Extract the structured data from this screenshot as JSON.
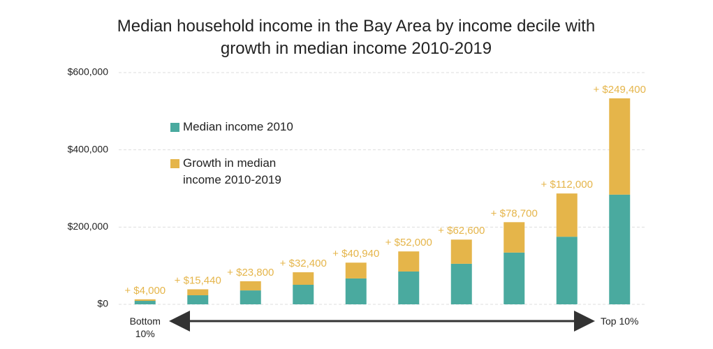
{
  "chart_data": {
    "type": "stacked_bar",
    "title": "Median household income in the Bay Area by income decile with growth in median income 2010-2019",
    "categories": [
      "Bottom 10%",
      null,
      null,
      null,
      null,
      null,
      null,
      null,
      null,
      "Top 10%"
    ],
    "series": [
      {
        "name": "Median income 2010",
        "color": "#4aaa9f",
        "values": [
          9000,
          23500,
          36000,
          50600,
          67000,
          85000,
          105000,
          134000,
          175000,
          284000
        ]
      },
      {
        "name": "Growth in median income 2010-2019",
        "color": "#e5b54a",
        "values": [
          4000,
          15440,
          23800,
          32400,
          40940,
          52000,
          62600,
          78700,
          112000,
          249400
        ],
        "value_labels": [
          "+ $4,000",
          "+ $15,440",
          "+ $23,800",
          "+ $32,400",
          "+ $40,940",
          "+ $52,000",
          "+ $62,600",
          "+ $78,700",
          "+ $112,000",
          "+ $249,400"
        ]
      }
    ],
    "ylim": [
      0,
      600000
    ],
    "yticks": [
      {
        "value": 0,
        "label": "$0"
      },
      {
        "value": 200000,
        "label": "$200,000"
      },
      {
        "value": 400000,
        "label": "$400,000"
      },
      {
        "value": 600000,
        "label": "$600,000"
      }
    ],
    "grid": true,
    "legend": "upper-left"
  }
}
